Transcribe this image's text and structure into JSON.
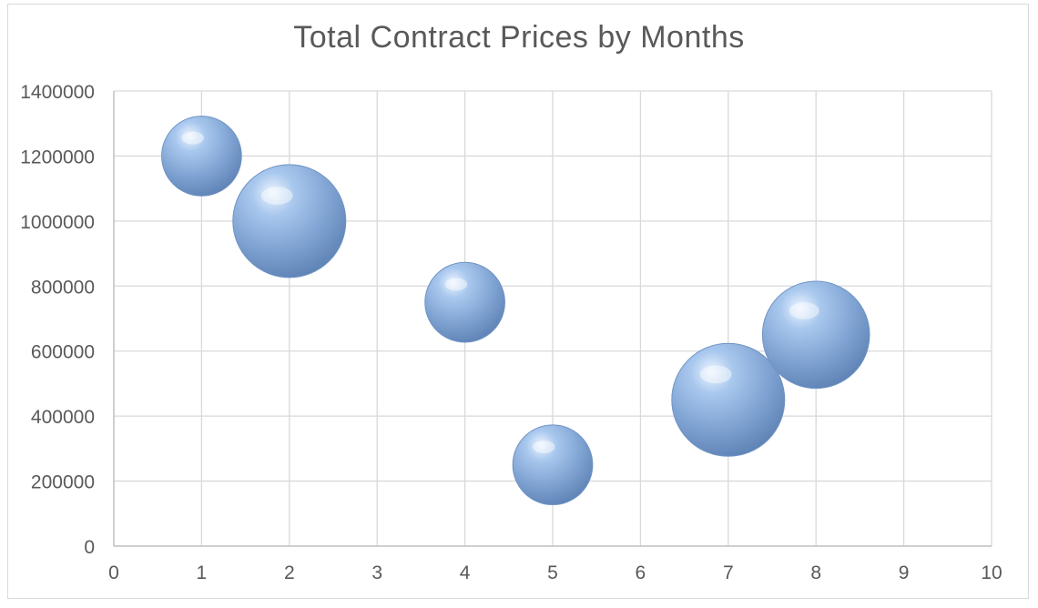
{
  "chart_data": {
    "type": "bubble",
    "title": "Total Contract Prices by Months",
    "xlabel": "",
    "ylabel": "",
    "xlim": [
      0,
      10
    ],
    "ylim": [
      0,
      1400000
    ],
    "x_ticks": [
      "0",
      "1",
      "2",
      "3",
      "4",
      "5",
      "6",
      "7",
      "8",
      "9",
      "10"
    ],
    "y_ticks": [
      "0",
      "200000",
      "400000",
      "600000",
      "800000",
      "1000000",
      "1200000",
      "1400000"
    ],
    "grid": true,
    "legend": "none",
    "bubble_color": "#8eb4e3",
    "series": [
      {
        "points": [
          {
            "x": 1,
            "y": 1200000,
            "size": 0.5
          },
          {
            "x": 2,
            "y": 1000000,
            "size": 1.0
          },
          {
            "x": 4,
            "y": 750000,
            "size": 0.5
          },
          {
            "x": 5,
            "y": 250000,
            "size": 0.5
          },
          {
            "x": 7,
            "y": 450000,
            "size": 1.0
          },
          {
            "x": 8,
            "y": 650000,
            "size": 0.9
          }
        ]
      }
    ]
  }
}
